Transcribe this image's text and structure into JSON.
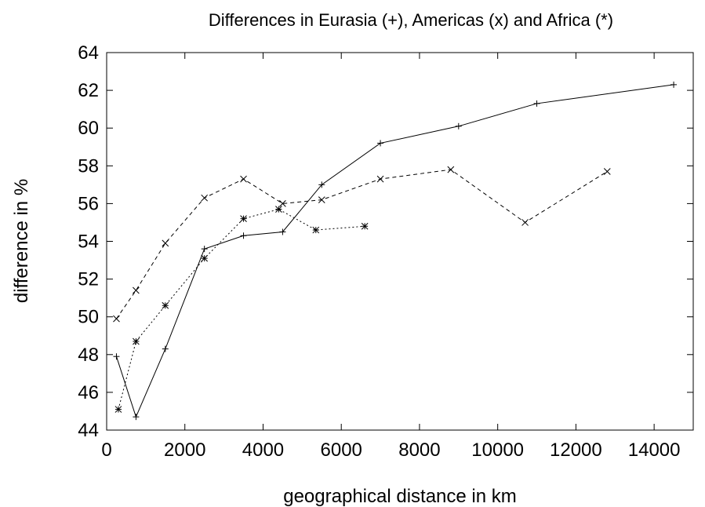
{
  "chart_data": {
    "type": "line",
    "title": "Differences in Eurasia (+), Americas (x) and Africa (*)",
    "xlabel": "geographical distance in km",
    "ylabel": "difference in %",
    "xlim": [
      0,
      15000
    ],
    "ylim": [
      44,
      64
    ],
    "xticks": [
      0,
      2000,
      4000,
      6000,
      8000,
      10000,
      12000,
      14000
    ],
    "yticks": [
      44,
      46,
      48,
      50,
      52,
      54,
      56,
      58,
      60,
      62,
      64
    ],
    "grid": false,
    "series": [
      {
        "name": "Eurasia",
        "marker": "+",
        "dash": "solid",
        "x": [
          250,
          750,
          1500,
          2500,
          3500,
          4500,
          5500,
          7000,
          9000,
          11000,
          14500
        ],
        "y": [
          47.9,
          44.7,
          48.3,
          53.6,
          54.3,
          54.5,
          57.0,
          59.2,
          60.1,
          61.3,
          62.3
        ]
      },
      {
        "name": "Americas",
        "marker": "x",
        "dash": "dashed",
        "x": [
          250,
          750,
          1500,
          2500,
          3500,
          4500,
          5500,
          7000,
          8800,
          10700,
          12800
        ],
        "y": [
          49.9,
          51.4,
          53.9,
          56.3,
          57.3,
          56.0,
          56.2,
          57.3,
          57.8,
          55.0,
          57.7
        ]
      },
      {
        "name": "Africa",
        "marker": "*",
        "dash": "dotted",
        "x": [
          300,
          750,
          1500,
          2500,
          3500,
          4400,
          5350,
          6600
        ],
        "y": [
          45.1,
          48.7,
          50.6,
          53.1,
          55.2,
          55.7,
          54.6,
          54.8
        ]
      }
    ]
  }
}
